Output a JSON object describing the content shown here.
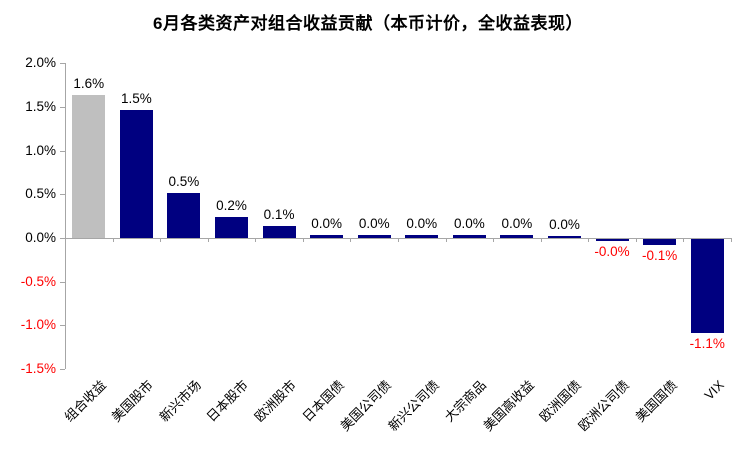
{
  "chart_data": {
    "type": "bar",
    "title": "6月各类资产对组合收益贡献（本币计价，全收益表现）",
    "xlabel": "",
    "ylabel": "",
    "categories": [
      "组合收益",
      "美国股市",
      "新兴市场",
      "日本股市",
      "欧洲股市",
      "日本国债",
      "美国公司债",
      "新兴公司债",
      "大宗商品",
      "美国高收益",
      "欧洲国债",
      "欧洲公司债",
      "美国国债",
      "VIX"
    ],
    "values": [
      1.6,
      1.5,
      0.5,
      0.2,
      0.1,
      0.0,
      0.0,
      0.0,
      0.0,
      0.0,
      0.0,
      -0.0,
      -0.1,
      -1.1
    ],
    "data_labels": [
      "1.6%",
      "1.5%",
      "0.5%",
      "0.2%",
      "0.1%",
      "0.0%",
      "0.0%",
      "0.0%",
      "0.0%",
      "0.0%",
      "0.0%",
      "-0.0%",
      "-0.1%",
      "-1.1%"
    ],
    "render_values": [
      1.64,
      1.47,
      0.52,
      0.24,
      0.14,
      0.04,
      0.04,
      0.03,
      0.03,
      0.03,
      0.02,
      -0.02,
      -0.07,
      -1.07
    ],
    "bar_colors": [
      "#BFBFBF",
      "#000080",
      "#000080",
      "#000080",
      "#000080",
      "#000080",
      "#000080",
      "#000080",
      "#000080",
      "#000080",
      "#000080",
      "#000080",
      "#000080",
      "#000080"
    ],
    "ylim": [
      -1.5,
      2.0
    ],
    "y_ticks": [
      "2.0%",
      "1.5%",
      "1.0%",
      "0.5%",
      "0.0%",
      "-0.5%",
      "-1.0%",
      "-1.5%"
    ],
    "grid": false,
    "legend": null,
    "colors": {
      "bar": "#000080",
      "highlight_bar": "#BFBFBF",
      "positive_label": "#000000",
      "negative_label": "#FF0000",
      "axis": "#A6A6A6",
      "title": "#000000"
    }
  }
}
